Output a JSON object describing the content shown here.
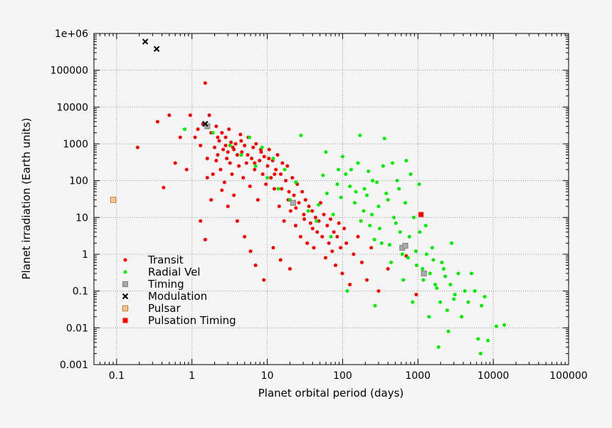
{
  "chart_data": {
    "type": "scatter",
    "title": "",
    "xlabel": "Planet orbital period (days)",
    "ylabel": "Planet irradiation (Earth units)",
    "xscale": "log",
    "yscale": "log",
    "xlim": [
      0.05,
      100000
    ],
    "ylim": [
      0.001,
      1000000
    ],
    "grid": true,
    "legend_position": "bottom-left",
    "x_ticks": [
      {
        "value": 0.1,
        "label": "0.1"
      },
      {
        "value": 1,
        "label": "1"
      },
      {
        "value": 10,
        "label": "10"
      },
      {
        "value": 100,
        "label": "100"
      },
      {
        "value": 1000,
        "label": "1000"
      },
      {
        "value": 10000,
        "label": "10000"
      },
      {
        "value": 100000,
        "label": "100000"
      }
    ],
    "y_ticks": [
      {
        "value": 0.001,
        "label": "0.001"
      },
      {
        "value": 0.01,
        "label": "0.01"
      },
      {
        "value": 0.1,
        "label": "0.1"
      },
      {
        "value": 1,
        "label": "1"
      },
      {
        "value": 10,
        "label": "10"
      },
      {
        "value": 100,
        "label": "100"
      },
      {
        "value": 1000,
        "label": "1000"
      },
      {
        "value": 10000,
        "label": "10000"
      },
      {
        "value": 100000,
        "label": "100000"
      },
      {
        "value": 1000000,
        "label": "1e+06"
      }
    ],
    "series": [
      {
        "name": "Transit",
        "color": "#ff0000",
        "marker": "dot",
        "points": [
          [
            0.19,
            800
          ],
          [
            0.35,
            4000
          ],
          [
            0.42,
            65
          ],
          [
            0.5,
            6000
          ],
          [
            0.6,
            300
          ],
          [
            0.7,
            1500
          ],
          [
            0.85,
            200
          ],
          [
            0.95,
            6000
          ],
          [
            1.1,
            1500
          ],
          [
            1.2,
            2500
          ],
          [
            1.3,
            900
          ],
          [
            1.4,
            3500
          ],
          [
            1.5,
            45000
          ],
          [
            1.6,
            400
          ],
          [
            1.7,
            6000
          ],
          [
            1.8,
            2000
          ],
          [
            1.9,
            150
          ],
          [
            2.0,
            800
          ],
          [
            2.1,
            3000
          ],
          [
            2.2,
            500
          ],
          [
            2.3,
            1200
          ],
          [
            2.4,
            200
          ],
          [
            2.5,
            2000
          ],
          [
            2.6,
            700
          ],
          [
            2.7,
            90
          ],
          [
            2.8,
            1500
          ],
          [
            2.9,
            400
          ],
          [
            3.0,
            600
          ],
          [
            3.1,
            2500
          ],
          [
            3.2,
            300
          ],
          [
            3.3,
            1100
          ],
          [
            3.4,
            150
          ],
          [
            3.5,
            800
          ],
          [
            3.6,
            40
          ],
          [
            3.8,
            1000
          ],
          [
            4.0,
            500
          ],
          [
            4.2,
            250
          ],
          [
            4.4,
            1800
          ],
          [
            4.6,
            600
          ],
          [
            4.8,
            120
          ],
          [
            5.0,
            900
          ],
          [
            5.3,
            300
          ],
          [
            5.6,
            1500
          ],
          [
            5.9,
            70
          ],
          [
            6.2,
            400
          ],
          [
            6.5,
            800
          ],
          [
            6.8,
            200
          ],
          [
            7.1,
            1000
          ],
          [
            7.5,
            30
          ],
          [
            7.9,
            350
          ],
          [
            8.3,
            600
          ],
          [
            8.7,
            150
          ],
          [
            9.1,
            450
          ],
          [
            9.6,
            80
          ],
          [
            10.1,
            250
          ],
          [
            10.6,
            700
          ],
          [
            11.2,
            120
          ],
          [
            11.8,
            350
          ],
          [
            12.4,
            60
          ],
          [
            13.0,
            200
          ],
          [
            13.7,
            500
          ],
          [
            14.4,
            20
          ],
          [
            15.1,
            150
          ],
          [
            15.9,
            300
          ],
          [
            16.7,
            8
          ],
          [
            17.6,
            100
          ],
          [
            18.5,
            250
          ],
          [
            19.4,
            50
          ],
          [
            20.4,
            15
          ],
          [
            21.5,
            120
          ],
          [
            22.6,
            40
          ],
          [
            23.8,
            6
          ],
          [
            25.0,
            80
          ],
          [
            26.3,
            25
          ],
          [
            27.7,
            3
          ],
          [
            29.1,
            50
          ],
          [
            30.6,
            12
          ],
          [
            32.2,
            30
          ],
          [
            33.9,
            2
          ],
          [
            35.7,
            20
          ],
          [
            37.5,
            7
          ],
          [
            39.5,
            15
          ],
          [
            41.5,
            1.5
          ],
          [
            43.7,
            10
          ],
          [
            46.0,
            4
          ],
          [
            48.4,
            8
          ],
          [
            51.0,
            25
          ],
          [
            53.6,
            3
          ],
          [
            56.4,
            12
          ],
          [
            59.4,
            0.8
          ],
          [
            62.5,
            6
          ],
          [
            65.8,
            2
          ],
          [
            69.2,
            9
          ],
          [
            72.8,
            1.2
          ],
          [
            76.6,
            4
          ],
          [
            80.6,
            0.5
          ],
          [
            84.8,
            3
          ],
          [
            89.3,
            7
          ],
          [
            94.0,
            1.5
          ],
          [
            98.9,
            0.3
          ],
          [
            105,
            5
          ],
          [
            112,
            2
          ],
          [
            125,
            0.15
          ],
          [
            140,
            1
          ],
          [
            160,
            3
          ],
          [
            180,
            0.6
          ],
          [
            210,
            0.2
          ],
          [
            240,
            1.5
          ],
          [
            300,
            0.1
          ],
          [
            400,
            0.4
          ],
          [
            700,
            0.9
          ],
          [
            950,
            0.08
          ],
          [
            2.2,
            1500
          ],
          [
            2.8,
            900
          ],
          [
            3.6,
            700
          ],
          [
            4.5,
            1200
          ],
          [
            5.5,
            500
          ],
          [
            6.8,
            300
          ],
          [
            8.2,
            700
          ],
          [
            10.5,
            400
          ],
          [
            12.5,
            150
          ],
          [
            15.5,
            60
          ],
          [
            19.0,
            30
          ],
          [
            24.0,
            18
          ],
          [
            31.0,
            9
          ],
          [
            40.0,
            5
          ],
          [
            3.0,
            20
          ],
          [
            4.0,
            8
          ],
          [
            5.0,
            3
          ],
          [
            6.0,
            1.2
          ],
          [
            7.0,
            0.5
          ],
          [
            9.0,
            0.2
          ],
          [
            12.0,
            1.5
          ],
          [
            15.0,
            0.7
          ],
          [
            20.0,
            0.4
          ],
          [
            2.5,
            55
          ],
          [
            1.8,
            30
          ],
          [
            1.3,
            8
          ],
          [
            1.5,
            2.5
          ],
          [
            2.1,
            350
          ],
          [
            1.6,
            120
          ]
        ]
      },
      {
        "name": "Radial Vel",
        "color": "#00ee00",
        "marker": "dot",
        "points": [
          [
            0.8,
            2500
          ],
          [
            1.9,
            2000
          ],
          [
            3.2,
            900
          ],
          [
            4.5,
            500
          ],
          [
            5.8,
            1500
          ],
          [
            7.0,
            250
          ],
          [
            8.5,
            800
          ],
          [
            10.0,
            120
          ],
          [
            12.0,
            400
          ],
          [
            14.0,
            60
          ],
          [
            17.0,
            200
          ],
          [
            20.0,
            30
          ],
          [
            24.0,
            90
          ],
          [
            28.0,
            1700
          ],
          [
            35.0,
            15
          ],
          [
            45.0,
            8
          ],
          [
            60.0,
            600
          ],
          [
            70.0,
            3
          ],
          [
            85.0,
            80
          ],
          [
            100.0,
            450
          ],
          [
            115.0,
            0.1
          ],
          [
            130.0,
            200
          ],
          [
            150.0,
            50
          ],
          [
            170.0,
            1700
          ],
          [
            190.0,
            15
          ],
          [
            210.0,
            40
          ],
          [
            230.0,
            6
          ],
          [
            250.0,
            100
          ],
          [
            270.0,
            0.04
          ],
          [
            300.0,
            20
          ],
          [
            330.0,
            2
          ],
          [
            360.0,
            1400
          ],
          [
            400.0,
            30
          ],
          [
            440.0,
            0.6
          ],
          [
            480.0,
            10
          ],
          [
            530.0,
            100
          ],
          [
            580.0,
            4
          ],
          [
            640.0,
            0.2
          ],
          [
            700.0,
            350
          ],
          [
            770.0,
            3
          ],
          [
            850.0,
            0.05
          ],
          [
            940.0,
            1.2
          ],
          [
            1040.0,
            80
          ],
          [
            1150.0,
            0.4
          ],
          [
            1270.0,
            6
          ],
          [
            1400.0,
            0.02
          ],
          [
            1550.0,
            1.5
          ],
          [
            1700.0,
            0.15
          ],
          [
            1880.0,
            0.003
          ],
          [
            2080.0,
            0.6
          ],
          [
            2300.0,
            0.25
          ],
          [
            2540.0,
            0.008
          ],
          [
            2800.0,
            2
          ],
          [
            3100.0,
            0.08
          ],
          [
            3430.0,
            0.3
          ],
          [
            3800.0,
            0.02
          ],
          [
            4200.0,
            0.1
          ],
          [
            4650.0,
            0.05
          ],
          [
            5140.0,
            0.3
          ],
          [
            5700.0,
            0.1
          ],
          [
            6300.0,
            0.005
          ],
          [
            7000.0,
            0.04
          ],
          [
            7700.0,
            0.07
          ],
          [
            8500.0,
            0.0045
          ],
          [
            11000.0,
            0.011
          ],
          [
            14000.0,
            0.012
          ],
          [
            6800.0,
            0.002
          ],
          [
            48.0,
            22
          ],
          [
            55.0,
            140
          ],
          [
            62.0,
            45
          ],
          [
            75.0,
            12
          ],
          [
            88.0,
            200
          ],
          [
            95.0,
            35
          ],
          [
            110.0,
            150
          ],
          [
            125.0,
            70
          ],
          [
            145.0,
            25
          ],
          [
            160.0,
            300
          ],
          [
            175.0,
            8
          ],
          [
            195.0,
            60
          ],
          [
            220.0,
            180
          ],
          [
            245.0,
            12
          ],
          [
            265.0,
            2.5
          ],
          [
            285.0,
            90
          ],
          [
            310.0,
            5
          ],
          [
            345.0,
            250
          ],
          [
            380.0,
            45
          ],
          [
            420.0,
            1.8
          ],
          [
            460.0,
            300
          ],
          [
            510.0,
            7
          ],
          [
            560.0,
            60
          ],
          [
            620.0,
            1
          ],
          [
            680.0,
            25
          ],
          [
            740.0,
            0.8
          ],
          [
            800.0,
            150
          ],
          [
            880.0,
            10
          ],
          [
            960.0,
            0.5
          ],
          [
            1060.0,
            4
          ],
          [
            1180.0,
            0.2
          ],
          [
            1300.0,
            1
          ],
          [
            1450.0,
            0.3
          ],
          [
            1600.0,
            0.7
          ],
          [
            1780.0,
            0.12
          ],
          [
            1980.0,
            0.05
          ],
          [
            2200.0,
            0.4
          ],
          [
            2450.0,
            0.03
          ],
          [
            2700.0,
            0.15
          ],
          [
            3000.0,
            0.06
          ]
        ]
      },
      {
        "name": "Timing",
        "color": "#888888",
        "marker": "square",
        "points": [
          [
            1.6,
            3000
          ],
          [
            22.0,
            25
          ],
          [
            620.0,
            1.5
          ],
          [
            680.0,
            1.7
          ],
          [
            1200.0,
            0.3
          ]
        ]
      },
      {
        "name": "Modulation",
        "color": "#000000",
        "marker": "x",
        "points": [
          [
            0.24,
            600000
          ],
          [
            0.34,
            380000
          ],
          [
            1.5,
            3500
          ]
        ]
      },
      {
        "name": "Pulsar",
        "color": "#ee6600",
        "marker": "square",
        "points": [
          [
            0.09,
            30
          ]
        ]
      },
      {
        "name": "Pulsation Timing",
        "color": "#ff0000",
        "marker": "filled-square",
        "points": [
          [
            1100.0,
            12
          ]
        ]
      }
    ]
  }
}
